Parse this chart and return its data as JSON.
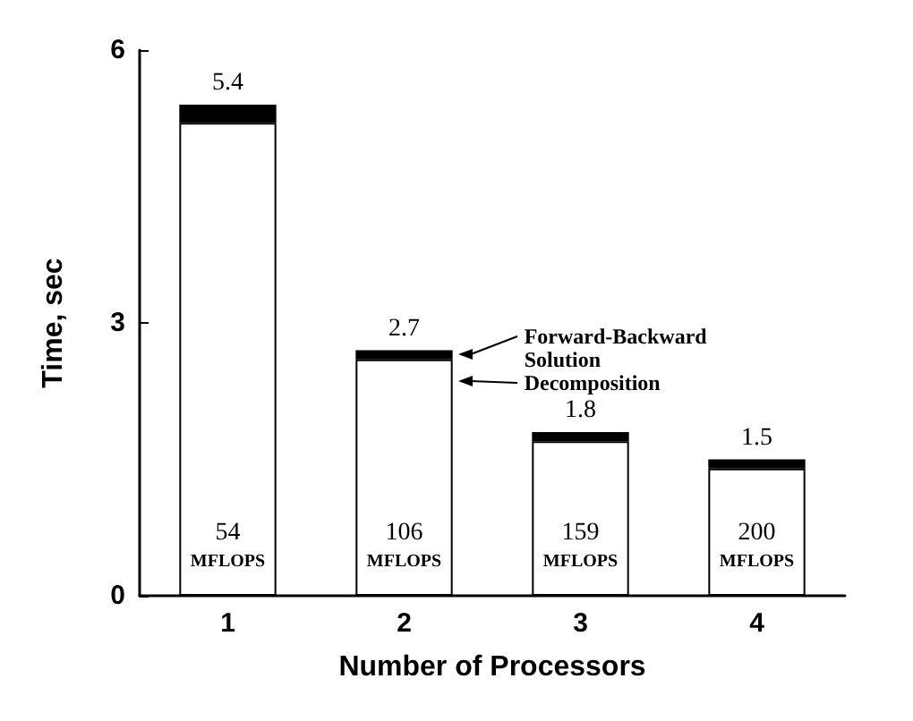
{
  "chart_data": {
    "type": "bar",
    "stacked": true,
    "xlabel": "Number of Processors",
    "ylabel": "Time, sec",
    "categories": [
      "1",
      "2",
      "3",
      "4"
    ],
    "series": [
      {
        "name": "Decomposition",
        "color": "#ffffff",
        "values": [
          5.2,
          2.6,
          1.7,
          1.4
        ]
      },
      {
        "name": "Forward-Backward Solution",
        "color": "#000000",
        "values": [
          0.2,
          0.1,
          0.1,
          0.1
        ]
      }
    ],
    "totals": [
      "5.4",
      "2.7",
      "1.8",
      "1.5"
    ],
    "ylim": [
      0,
      6
    ],
    "yticks": [
      0,
      3,
      6
    ],
    "grid": false,
    "legend": "right",
    "annotations": [
      "54 MFLOPS",
      "106 MFLOPS",
      "159 MFLOPS",
      "200 MFLOPS"
    ]
  }
}
